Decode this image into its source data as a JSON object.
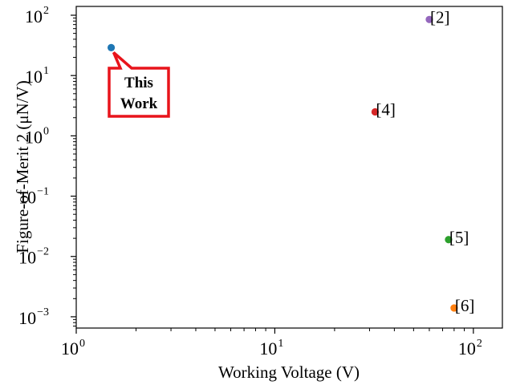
{
  "chart_data": {
    "type": "scatter",
    "xlabel": "Working Voltage (V)",
    "ylabel": "Figure-of-Merit 2 (μN/V)",
    "xscale": "log",
    "yscale": "log",
    "xlim": [
      1,
      140
    ],
    "ylim": [
      0.00065,
      140
    ],
    "grid": false,
    "x_ticks": [
      {
        "base": "10",
        "exp": "0",
        "value": 1
      },
      {
        "base": "10",
        "exp": "1",
        "value": 10
      },
      {
        "base": "10",
        "exp": "2",
        "value": 100
      }
    ],
    "y_ticks": [
      {
        "base": "10",
        "exp": "−3",
        "value": 0.001
      },
      {
        "base": "10",
        "exp": "−2",
        "value": 0.01
      },
      {
        "base": "10",
        "exp": "−1",
        "value": 0.1
      },
      {
        "base": "10",
        "exp": "0",
        "value": 1
      },
      {
        "base": "10",
        "exp": "1",
        "value": 10
      },
      {
        "base": "10",
        "exp": "2",
        "value": 100
      }
    ],
    "points": [
      {
        "label": "",
        "x": 1.5,
        "y": 29,
        "color": "#1f77b4"
      },
      {
        "label": "[2]",
        "x": 60,
        "y": 85,
        "color": "#9467bd"
      },
      {
        "label": "[4]",
        "x": 32,
        "y": 2.5,
        "color": "#d62728"
      },
      {
        "label": "[5]",
        "x": 75,
        "y": 0.019,
        "color": "#2ca02c"
      },
      {
        "label": "[6]",
        "x": 80,
        "y": 0.0014,
        "color": "#ff7f0e"
      }
    ],
    "annotation": {
      "lines": [
        "This",
        "Work"
      ],
      "target_x": 1.5,
      "target_y": 29,
      "color": "#e8141b"
    }
  }
}
